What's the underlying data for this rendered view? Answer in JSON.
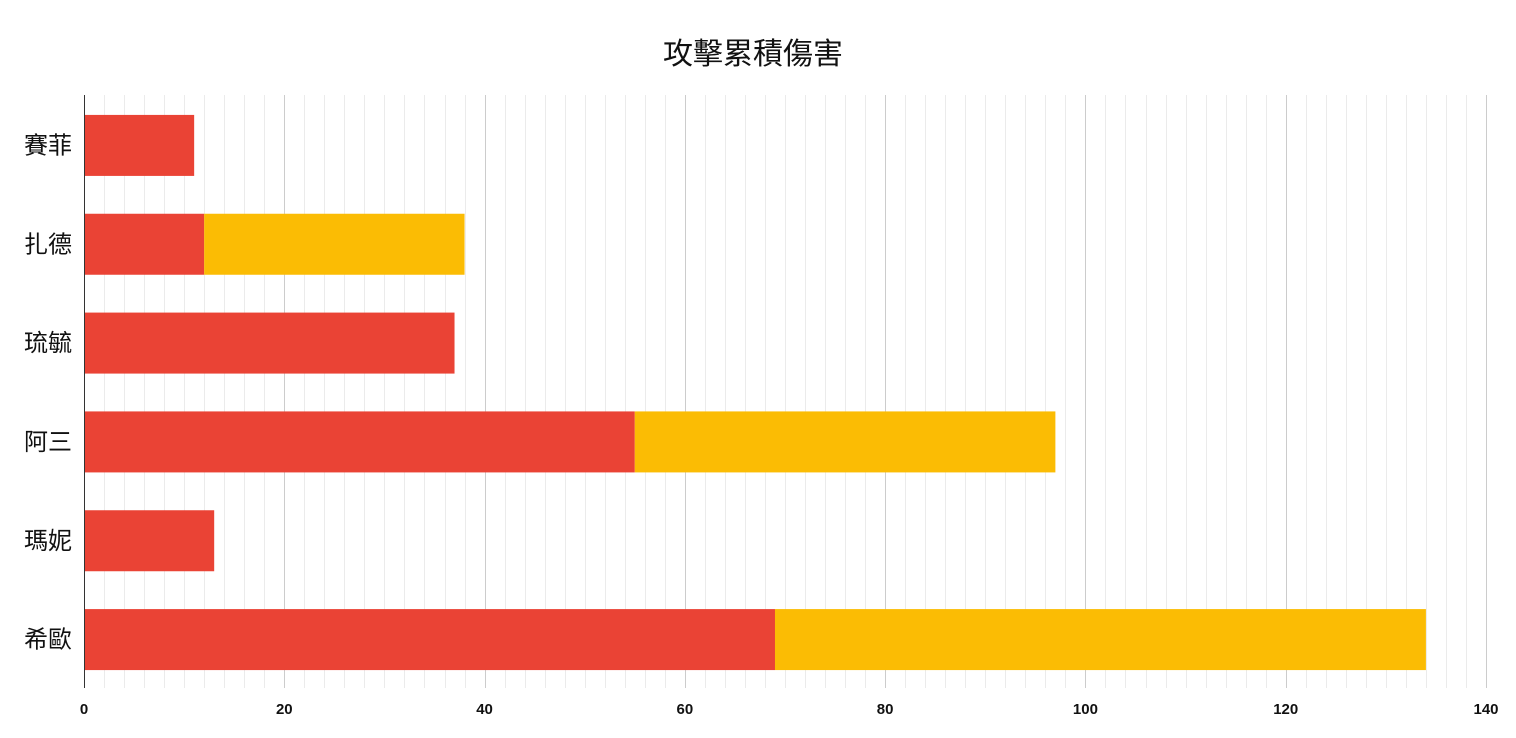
{
  "chart_data": {
    "type": "bar",
    "orientation": "horizontal",
    "stacked": true,
    "title": "攻擊累積傷害",
    "xlabel": "",
    "ylabel": "",
    "categories": [
      "賽菲",
      "扎德",
      "琉毓",
      "阿三",
      "瑪妮",
      "希歐"
    ],
    "series": [
      {
        "values": [
          11,
          12,
          37,
          55,
          13,
          69
        ],
        "color": "#ea4335"
      },
      {
        "values": [
          0,
          26,
          0,
          42,
          0,
          65
        ],
        "color": "#fbbc04"
      }
    ],
    "xlim": [
      0,
      140
    ],
    "x_ticks": [
      0,
      20,
      40,
      60,
      80,
      100,
      120,
      140
    ],
    "x_minor_step": 2,
    "grid": true,
    "legend": "none"
  }
}
